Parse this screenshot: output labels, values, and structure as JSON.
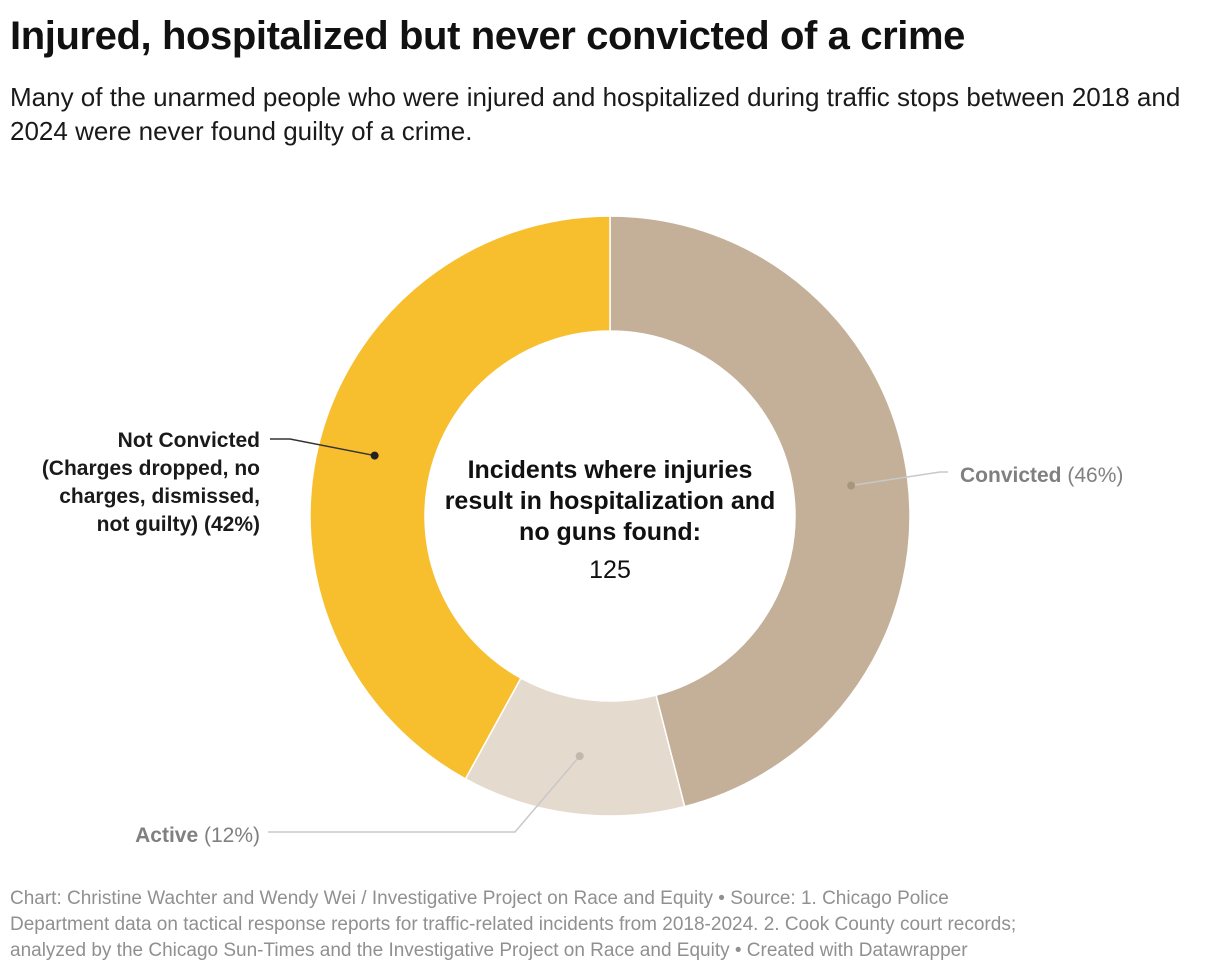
{
  "title": "Injured, hospitalized but never convicted of a crime",
  "subtitle": "Many of the unarmed people who were injured and hospitalized during traffic stops between 2018 and 2024 were never found guilty of a crime.",
  "chart_data": {
    "type": "pie",
    "variant": "donut",
    "center_label": {
      "lines": [
        "Incidents where injuries",
        "result in hospitalization and",
        "no guns found:"
      ],
      "value": "125"
    },
    "slices": [
      {
        "label": "Convicted",
        "value": 46,
        "value_text": "(46%)",
        "color": "#c4b098",
        "label_color": "#808080"
      },
      {
        "label": "Active",
        "value": 12,
        "value_text": "(12%)",
        "color": "#e4dacd",
        "label_color": "#808080"
      },
      {
        "label": "Not Convicted",
        "label_lines": [
          "Not Convicted",
          "(Charges dropped, no",
          "charges, dismissed,",
          "not guilty) (42%)"
        ],
        "value": 42,
        "color": "#f7bf2e",
        "label_color": "#1a1a1a"
      }
    ]
  },
  "footer": {
    "lines": [
      "Chart: Christine Wachter and Wendy Wei / Investigative Project on Race and Equity   • Source: 1. Chicago Police",
      "Department data on tactical response reports for traffic-related incidents from 2018-2024. 2. Cook County court records;",
      "analyzed by the Chicago Sun-Times and the Investigative Project on Race and Equity • Created with Datawrapper"
    ]
  }
}
